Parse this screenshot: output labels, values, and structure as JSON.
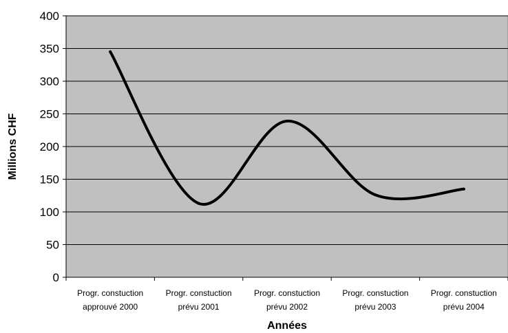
{
  "chart_data": {
    "type": "line",
    "title": "",
    "xlabel": "Années",
    "ylabel": "Millions CHF",
    "categories": [
      [
        "Progr. constuction",
        "approuvé 2000"
      ],
      [
        "Progr. constuction",
        "prévu 2001"
      ],
      [
        "Progr. constuction",
        "prévu 2002"
      ],
      [
        "Progr. constuction",
        "prévu 2003"
      ],
      [
        "Progr. constuction",
        "prévu 2004"
      ]
    ],
    "series": [
      {
        "values": [
          345,
          113,
          239,
          126,
          135
        ]
      }
    ],
    "ylim": [
      0,
      400
    ],
    "yticks": [
      "0",
      "50",
      "100",
      "150",
      "200",
      "250",
      "300",
      "350",
      "400"
    ],
    "smooth": true,
    "grid": true,
    "legend": "none",
    "colors": {
      "plot_background": "#c0c0c0",
      "line": "#000000",
      "grid": "#000000"
    }
  }
}
